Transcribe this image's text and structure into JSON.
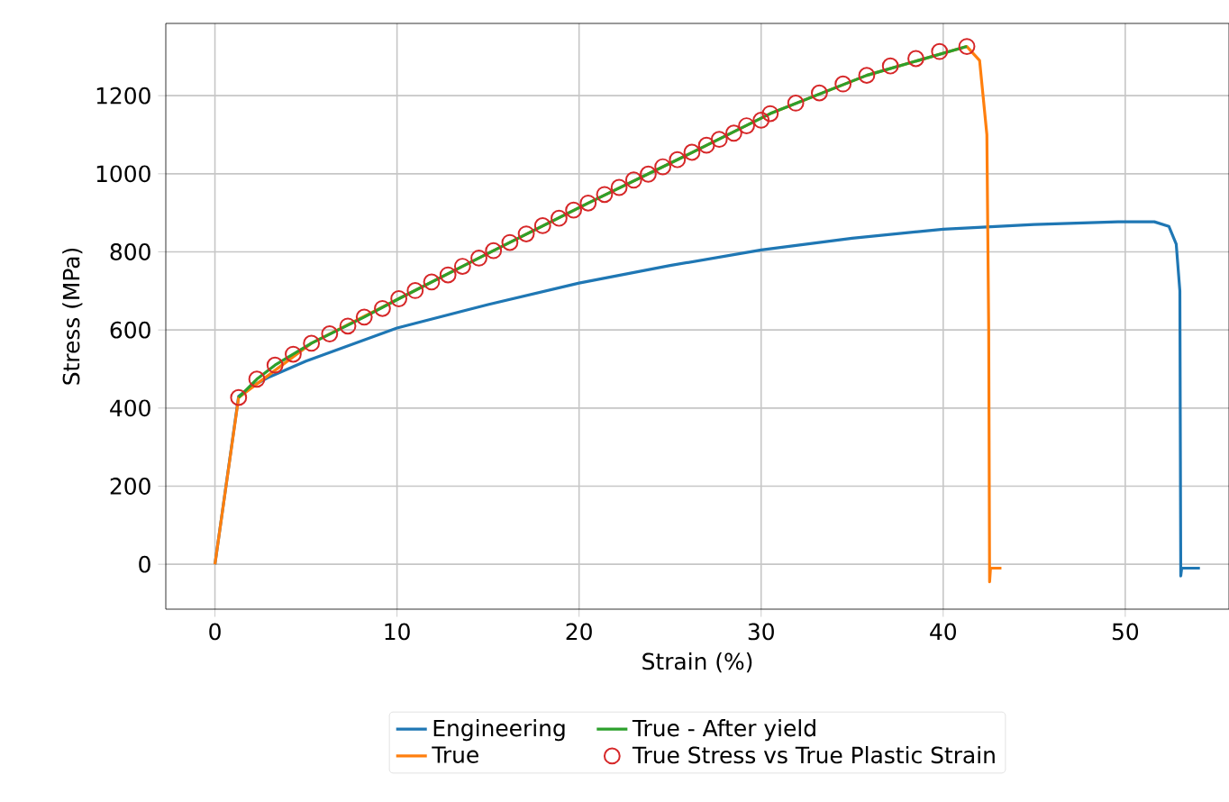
{
  "chart_data": {
    "type": "line",
    "xlabel": "Strain (%)",
    "ylabel": "Stress (MPa)",
    "xlim": [
      -2.7,
      55.7
    ],
    "ylim": [
      -115,
      1385
    ],
    "xticks": [
      0,
      10,
      20,
      30,
      40,
      50
    ],
    "yticks": [
      0,
      200,
      400,
      600,
      800,
      1000,
      1200
    ],
    "grid": true,
    "legend": "bottom",
    "series": [
      {
        "name": "Engineering",
        "color": "#1f77b4",
        "x": [
          0,
          1.3,
          2,
          3,
          5,
          10,
          15,
          20,
          25,
          30,
          35,
          40,
          45,
          49.6,
          51.6,
          52.4,
          52.8,
          53.0,
          53.05,
          53.1,
          54.1
        ],
        "values": [
          0,
          430,
          455,
          480,
          520,
          605,
          665,
          720,
          765,
          805,
          835,
          858,
          870,
          877,
          877,
          865,
          820,
          700,
          -30,
          -10,
          -10
        ]
      },
      {
        "name": "True",
        "color": "#ff7f0e",
        "x": [
          0,
          1.3,
          5.3,
          10.1,
          15.3,
          20.5,
          25.4,
          30.5,
          35.8,
          41.3,
          42.0,
          42.4,
          42.5,
          42.55,
          42.6,
          43.2
        ],
        "values": [
          0,
          427,
          566,
          680,
          803,
          925,
          1036,
          1154,
          1252,
          1326,
          1290,
          1100,
          600,
          -45,
          -10,
          -10
        ]
      },
      {
        "name": "True - After yield",
        "color": "#2ca02c",
        "x": [
          1.3,
          2.3,
          3.3,
          5.3,
          8.2,
          10.1,
          15.3,
          20.5,
          25.4,
          30.5,
          35.8,
          41.3
        ],
        "values": [
          427,
          474,
          510,
          566,
          633,
          680,
          803,
          925,
          1036,
          1154,
          1252,
          1326
        ]
      },
      {
        "name": "True Stress vs True Plastic Strain",
        "color": "#d62728",
        "type": "scatter",
        "marker": "circle",
        "x": [
          1.3,
          2.3,
          3.3,
          4.3,
          5.3,
          6.3,
          7.3,
          8.2,
          9.2,
          10.1,
          11.0,
          11.9,
          12.8,
          13.6,
          14.5,
          15.3,
          16.2,
          17.1,
          18.0,
          18.9,
          19.7,
          20.5,
          21.4,
          22.2,
          23.0,
          23.8,
          24.6,
          25.4,
          26.2,
          27.0,
          27.7,
          28.5,
          29.2,
          30.0,
          30.5,
          31.9,
          33.2,
          34.5,
          35.8,
          37.1,
          38.5,
          39.8,
          41.3
        ],
        "values": [
          427,
          474,
          510,
          538,
          566,
          590,
          610,
          633,
          655,
          680,
          701,
          723,
          741,
          763,
          784,
          803,
          824,
          846,
          867,
          886,
          907,
          925,
          947,
          965,
          984,
          999,
          1018,
          1036,
          1055,
          1073,
          1088,
          1104,
          1123,
          1137,
          1154,
          1181,
          1207,
          1230,
          1252,
          1276,
          1295,
          1313,
          1326
        ]
      }
    ]
  }
}
